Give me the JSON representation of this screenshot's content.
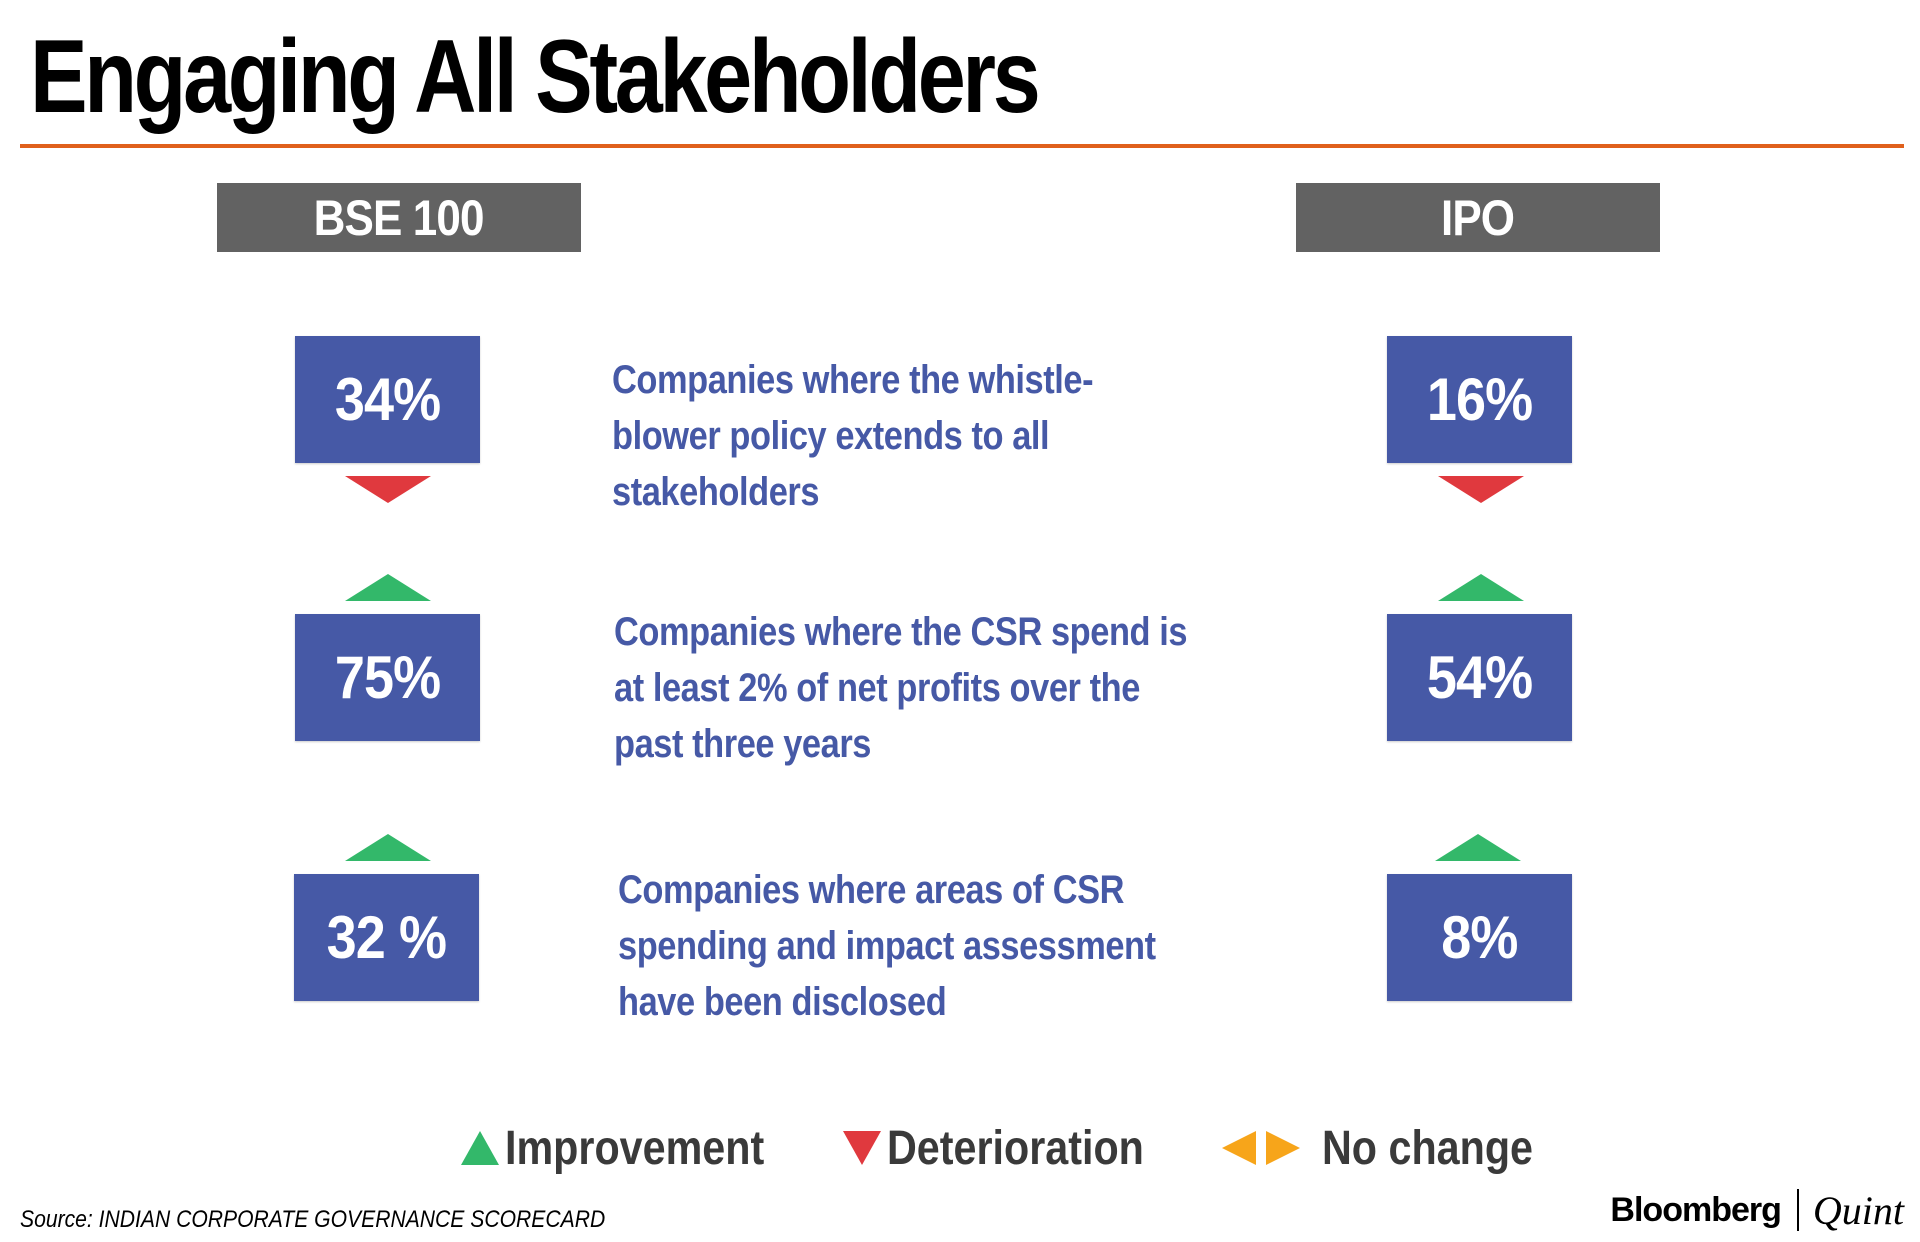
{
  "title": "Engaging All Stakeholders",
  "columns": {
    "left": "BSE 100",
    "right": "IPO"
  },
  "rows": [
    {
      "description": "Companies where the whistle-blower policy extends to all stakeholders",
      "bse100": "34%",
      "ipo": "16%",
      "bse100_trend": "deterioration",
      "ipo_trend": "deterioration"
    },
    {
      "description": "Companies where the CSR spend is at least 2% of net profits over the past three years",
      "bse100": "75%",
      "ipo": "54%",
      "bse100_trend": "improvement",
      "ipo_trend": "improvement"
    },
    {
      "description": "Companies where areas of CSR spending and impact assessment have been disclosed",
      "bse100": "32 %",
      "ipo": "8%",
      "bse100_trend": "improvement",
      "ipo_trend": "improvement"
    }
  ],
  "chart_data": {
    "type": "table",
    "title": "Engaging All Stakeholders",
    "columns": [
      "BSE 100",
      "IPO"
    ],
    "rows": [
      {
        "label": "Companies where the whistle-blower policy extends to all stakeholders",
        "values": [
          34,
          16
        ],
        "trends": [
          "deterioration",
          "deterioration"
        ]
      },
      {
        "label": "Companies where the CSR spend is at least 2% of net profits over the past three years",
        "values": [
          75,
          54
        ],
        "trends": [
          "improvement",
          "improvement"
        ]
      },
      {
        "label": "Companies where areas of CSR spending and impact assessment have been disclosed",
        "values": [
          32,
          8
        ],
        "trends": [
          "improvement",
          "improvement"
        ]
      }
    ],
    "units": "%",
    "legend": [
      "Improvement",
      "Deterioration",
      "No change"
    ],
    "legend_position": "bottom"
  },
  "legend": {
    "improvement": "Improvement",
    "deterioration": "Deterioration",
    "no_change": "No change"
  },
  "colors": {
    "improvement": "#33b86a",
    "deterioration": "#e0393e",
    "no_change": "#f7a51a",
    "value_box": "#4659a6",
    "header_bg": "#626262",
    "rule": "#e0601c"
  },
  "source": "Source: INDIAN CORPORATE GOVERNANCE SCORECARD",
  "brand": {
    "name": "Bloomberg",
    "sub": "Quint"
  }
}
